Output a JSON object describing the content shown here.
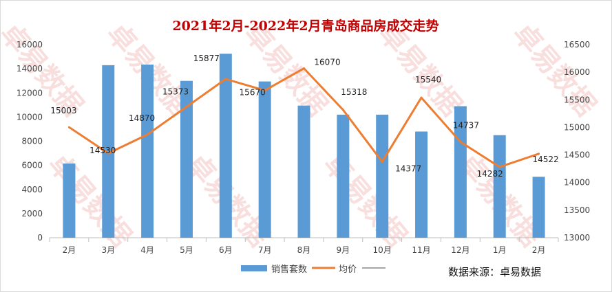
{
  "chart_data": {
    "type": "bar+line",
    "title": "2021年2月-2022年2月青岛商品房成交走势",
    "categories": [
      "2月",
      "3月",
      "4月",
      "5月",
      "6月",
      "7月",
      "8月",
      "9月",
      "10月",
      "11月",
      "12月",
      "1月",
      "2月"
    ],
    "series": [
      {
        "name": "销售套数",
        "type": "bar",
        "axis": "left",
        "color": "#5b9bd5",
        "values": [
          6150,
          14300,
          14350,
          13000,
          15250,
          12950,
          10950,
          10200,
          10200,
          8800,
          10900,
          8500,
          5050
        ]
      },
      {
        "name": "均价",
        "type": "line",
        "axis": "right",
        "color": "#ed7d31",
        "values": [
          15003,
          14530,
          14870,
          15373,
          15877,
          15670,
          16070,
          15318,
          14377,
          15540,
          14737,
          14282,
          14522
        ]
      }
    ],
    "y_left": {
      "min": 0,
      "max": 16000,
      "step": 2000,
      "ticks": [
        "0",
        "2000",
        "4000",
        "6000",
        "8000",
        "10000",
        "12000",
        "14000",
        "16000"
      ]
    },
    "y_right": {
      "min": 13000,
      "max": 16500,
      "step": 500,
      "ticks": [
        "13000",
        "13500",
        "14000",
        "14500",
        "15000",
        "15500",
        "16000",
        "16500"
      ]
    },
    "legend": {
      "position": "bottom",
      "extra_entry_color": "#a5a5a5"
    },
    "grid": false
  },
  "source_note": "数据来源：卓易数据",
  "watermark": "卓易数据"
}
